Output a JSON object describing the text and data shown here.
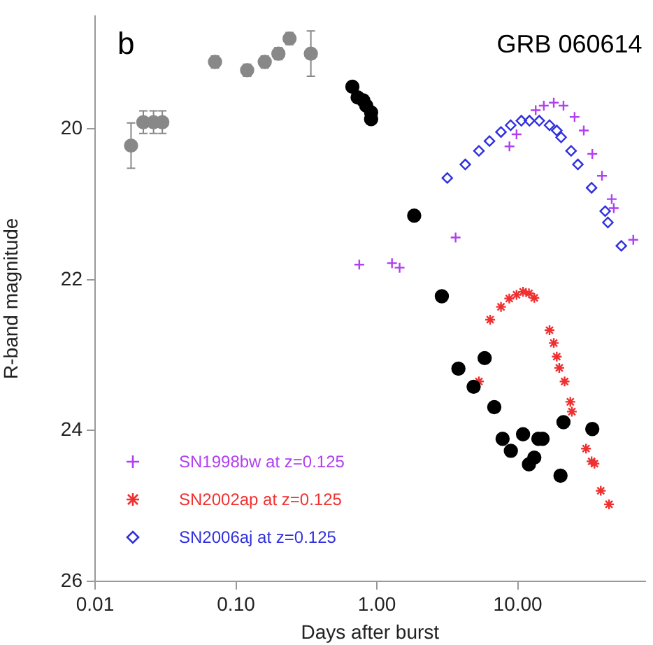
{
  "chart_data": {
    "type": "scatter",
    "xlabel": "Days after burst",
    "ylabel": "R-band magnitude",
    "annotations": [
      "b",
      "GRB 060614"
    ],
    "log": "x",
    "xlim": [
      0.01,
      80
    ],
    "ylim": [
      26,
      18.5
    ],
    "xticks": [
      {
        "value": 0.01,
        "label": "0.01"
      },
      {
        "value": 0.1,
        "label": "0.10"
      },
      {
        "value": 1,
        "label": "1.00"
      },
      {
        "value": 10,
        "label": "10.00"
      }
    ],
    "yticks": [
      20,
      22,
      24,
      26
    ],
    "grid": false,
    "legend": "bottom left",
    "series": [
      {
        "marker": "circle",
        "color": "#888888",
        "x": [
          0.018,
          0.022,
          0.026,
          0.03,
          0.071,
          0.12,
          0.16,
          0.2,
          0.24,
          0.34
        ],
        "values": [
          20.22,
          19.91,
          19.91,
          19.91,
          19.11,
          19.22,
          19.11,
          19.0,
          18.8,
          19.0
        ],
        "errors": [
          0.3,
          0.15,
          0.15,
          0.15,
          0.08,
          0.08,
          0.08,
          0.08,
          0.08,
          0.3
        ]
      },
      {
        "marker": "circle",
        "color": "#000000",
        "x": [
          0.67,
          0.73,
          0.8,
          0.84,
          0.91,
          0.91,
          1.84,
          2.89,
          3.79,
          4.86,
          5.82,
          6.81,
          7.8,
          8.93,
          10.9,
          12.0,
          13.1,
          14.0,
          15.0,
          20.1,
          21.1,
          33.8
        ],
        "values": [
          19.44,
          19.58,
          19.62,
          19.69,
          19.78,
          19.87,
          21.15,
          22.22,
          23.18,
          23.42,
          23.04,
          23.69,
          24.11,
          24.27,
          24.05,
          24.45,
          24.36,
          24.11,
          24.11,
          24.6,
          23.89,
          23.98
        ]
      },
      {
        "marker": "cross",
        "name": "SN1998bw at z=0.125",
        "color": "#b040f0",
        "x": [
          0.75,
          1.28,
          1.45,
          3.62,
          8.73,
          9.8,
          13.4,
          15.3,
          18.0,
          21.1,
          25.3,
          29.4,
          33.8,
          39.6,
          46.4,
          48,
          66
        ],
        "values": [
          21.8,
          21.78,
          21.84,
          21.44,
          20.23,
          20.07,
          19.75,
          19.69,
          19.65,
          19.69,
          19.84,
          20.02,
          20.33,
          20.62,
          20.93,
          21.05,
          21.47
        ]
      },
      {
        "marker": "cross",
        "name": "SN2002ap at z=0.125",
        "color": "#f03030",
        "x": [
          5.3,
          6.37,
          7.6,
          8.7,
          9.8,
          10.9,
          12.0,
          13.1,
          16.8,
          18.0,
          18.9,
          19.7,
          21.5,
          23.6,
          24.2,
          30.5,
          33.4,
          35,
          38.8,
          44.4
        ],
        "values": [
          23.35,
          22.53,
          22.36,
          22.25,
          22.2,
          22.16,
          22.18,
          22.24,
          22.67,
          22.84,
          23.02,
          23.17,
          23.35,
          23.62,
          23.75,
          24.24,
          24.41,
          24.44,
          24.8,
          24.98
        ]
      },
      {
        "marker": "diamond",
        "name": "SN2006aj at z=0.125",
        "color": "#3030e0",
        "x": [
          3.16,
          4.24,
          5.3,
          6.3,
          7.6,
          8.9,
          10.6,
          12.1,
          14.2,
          16.8,
          18.9,
          20.3,
          23.9,
          26.7,
          33.4,
          41.7,
          43.6,
          54.3
        ],
        "values": [
          20.65,
          20.47,
          20.29,
          20.16,
          20.04,
          19.95,
          19.89,
          19.89,
          19.89,
          19.95,
          20.02,
          20.11,
          20.29,
          20.47,
          20.78,
          21.09,
          21.24,
          21.55
        ]
      }
    ]
  }
}
